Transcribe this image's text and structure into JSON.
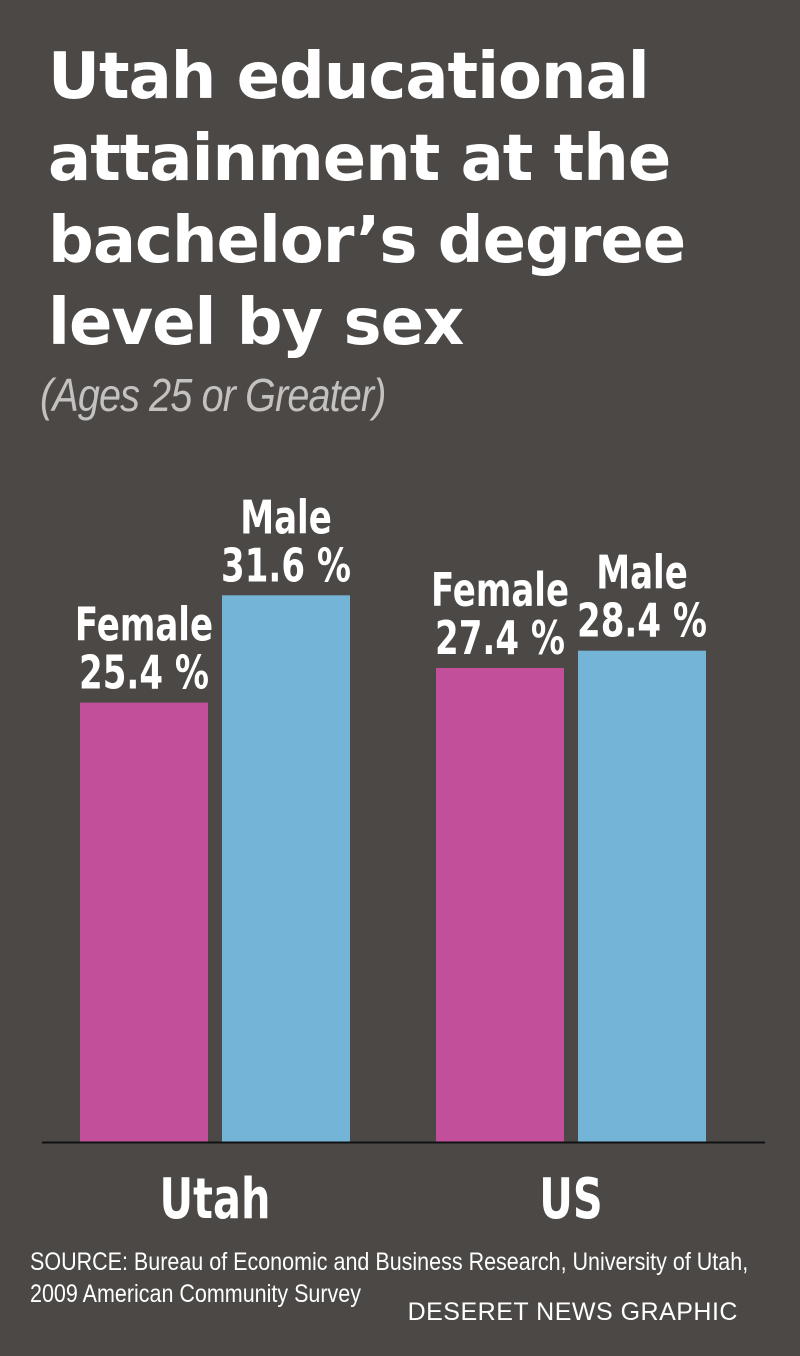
{
  "header": {
    "title_lines": [
      "Utah educational",
      "attainment at the",
      "bachelor’s degree",
      "level by sex"
    ],
    "subtitle": "(Ages 25 or Greater)"
  },
  "chart_data": {
    "type": "bar",
    "categories": [
      "Utah",
      "US"
    ],
    "series": [
      {
        "name": "Female",
        "values": [
          25.4,
          27.4
        ],
        "color": "#c14f9a"
      },
      {
        "name": "Male",
        "values": [
          31.6,
          28.4
        ],
        "color": "#74b5d7"
      }
    ],
    "value_labels": [
      [
        "25.4 %",
        "27.4 %"
      ],
      [
        "31.6 %",
        "28.4 %"
      ]
    ],
    "unit": "%",
    "ylim": [
      0,
      40
    ],
    "grid": false,
    "legend": "none"
  },
  "footer": {
    "source_lines": [
      "SOURCE: Bureau of Economic and Business Research, University of Utah,",
      "2009 American Community Survey"
    ],
    "credit": "DESERET NEWS GRAPHIC"
  }
}
